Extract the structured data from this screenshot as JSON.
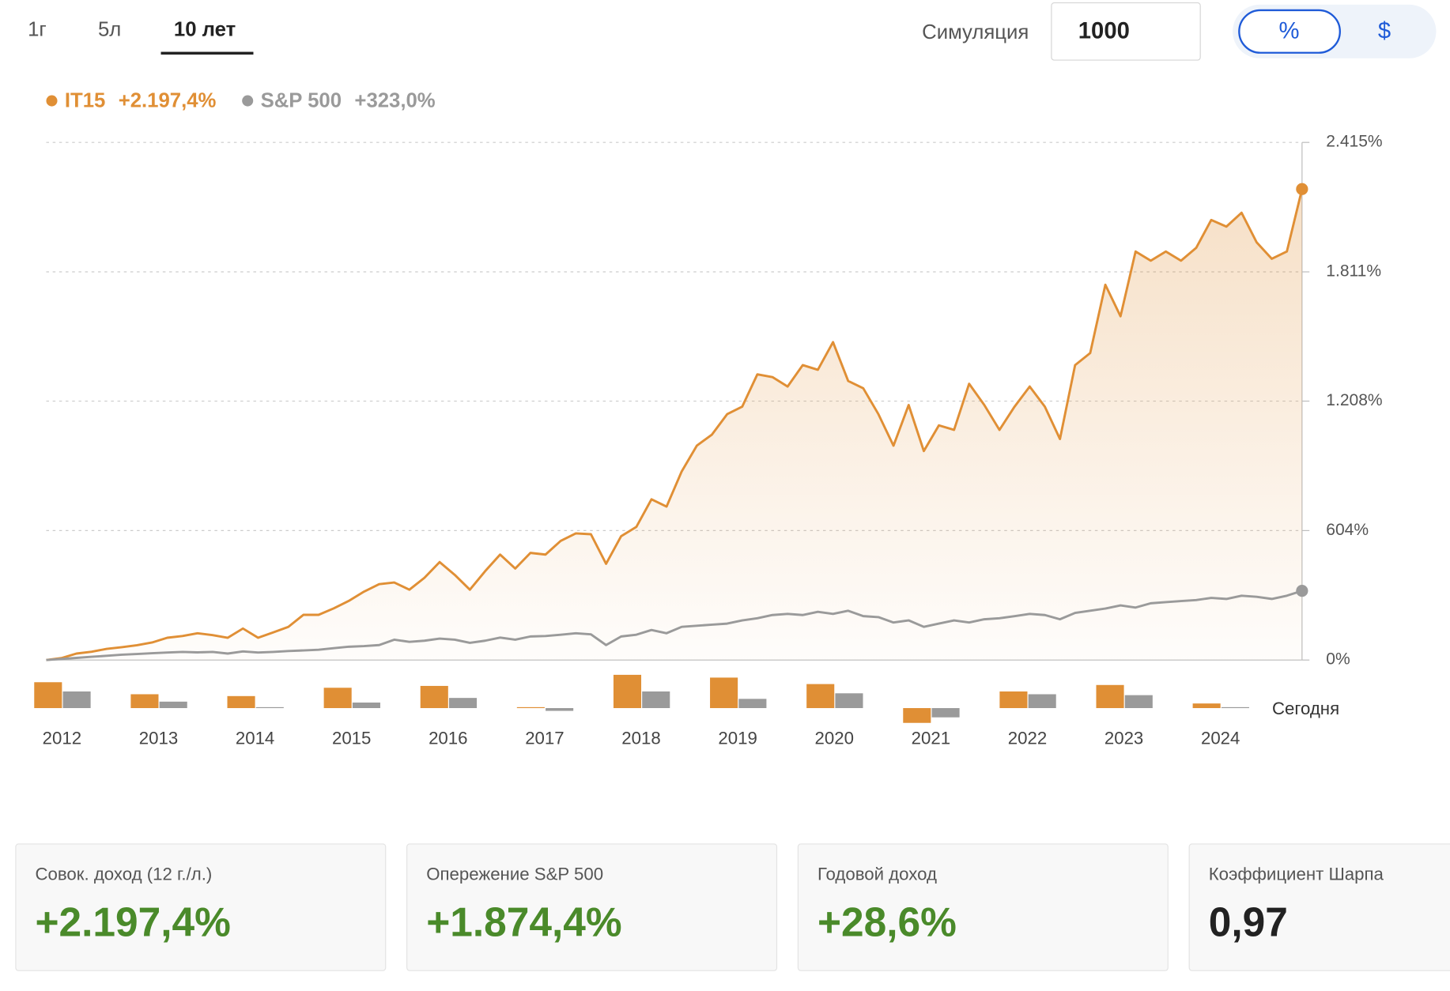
{
  "tabs": {
    "items": [
      "1г",
      "5л",
      "10 лет"
    ],
    "active": 2
  },
  "simulation": {
    "label": "Симуляция",
    "value": "1000"
  },
  "currency_toggle": {
    "items": [
      "%",
      "$"
    ],
    "active": 0
  },
  "chart_data": {
    "type": "line",
    "series": [
      {
        "name": "IT15",
        "color": "#e08f35",
        "total_label": "+2.197,4%",
        "values": [
          0,
          9,
          30,
          39,
          52,
          60,
          69,
          82,
          104,
          112,
          125,
          116,
          104,
          147,
          104,
          129,
          155,
          211,
          211,
          241,
          276,
          319,
          354,
          362,
          328,
          384,
          457,
          397,
          328,
          414,
          492,
          427,
          500,
          492,
          556,
          591,
          587,
          449,
          578,
          621,
          750,
          716,
          880,
          1000,
          1052,
          1147,
          1182,
          1333,
          1320,
          1276,
          1376,
          1354,
          1483,
          1302,
          1268,
          1147,
          1000,
          1190,
          975,
          1095,
          1074,
          1289,
          1190,
          1074,
          1182,
          1276,
          1182,
          1031,
          1376,
          1432,
          1751,
          1604,
          1906,
          1863,
          1906,
          1863,
          1923,
          2053,
          2022,
          2087,
          1949,
          1872,
          1906,
          2197.4
        ]
      },
      {
        "name": "S&P 500",
        "color": "#9a9a9a",
        "total_label": "+323,0%",
        "values": [
          0,
          5,
          10,
          15,
          20,
          25,
          28,
          32,
          35,
          38,
          36,
          38,
          30,
          40,
          35,
          38,
          42,
          45,
          48,
          55,
          62,
          65,
          70,
          95,
          85,
          90,
          100,
          95,
          80,
          90,
          105,
          95,
          110,
          112,
          118,
          125,
          120,
          70,
          110,
          118,
          140,
          125,
          155,
          160,
          165,
          170,
          185,
          195,
          210,
          215,
          210,
          225,
          215,
          230,
          205,
          200,
          175,
          185,
          155,
          170,
          185,
          175,
          190,
          195,
          205,
          215,
          210,
          190,
          220,
          230,
          240,
          255,
          245,
          265,
          270,
          275,
          280,
          290,
          285,
          300,
          295,
          285,
          300,
          323
        ]
      }
    ],
    "ylim": [
      0,
      2415
    ],
    "yticks": [
      {
        "value": 0,
        "label": "0%"
      },
      {
        "value": 604,
        "label": "604%"
      },
      {
        "value": 1208,
        "label": "1.208%"
      },
      {
        "value": 1811,
        "label": "1.811%"
      },
      {
        "value": 2415,
        "label": "2.415%"
      }
    ],
    "grid": true
  },
  "bar_chart": {
    "type": "bar",
    "categories": [
      "2012",
      "2013",
      "2014",
      "2015",
      "2016",
      "2017",
      "2018",
      "2019",
      "2020",
      "2021",
      "2022",
      "2023",
      "2024"
    ],
    "end_label": "Сегодня",
    "series": [
      {
        "name": "IT15",
        "color": "#e08f35",
        "values": [
          28,
          15,
          13,
          22,
          24,
          1,
          36,
          33,
          26,
          -16,
          18,
          25,
          5
        ]
      },
      {
        "name": "S&P 500",
        "color": "#9a9a9a",
        "values": [
          18,
          7,
          1,
          6,
          11,
          -3,
          18,
          10,
          16,
          -10,
          15,
          14,
          1
        ]
      }
    ]
  },
  "stats": [
    {
      "label": "Совок. доход (12 г./л.)",
      "value": "+2.197,4%",
      "positive": true
    },
    {
      "label": "Опережение S&P 500",
      "value": "+1.874,4%",
      "positive": true
    },
    {
      "label": "Годовой доход",
      "value": "+28,6%",
      "positive": true
    },
    {
      "label": "Коэффициент Шарпа",
      "value": "0,97",
      "positive": false
    }
  ]
}
